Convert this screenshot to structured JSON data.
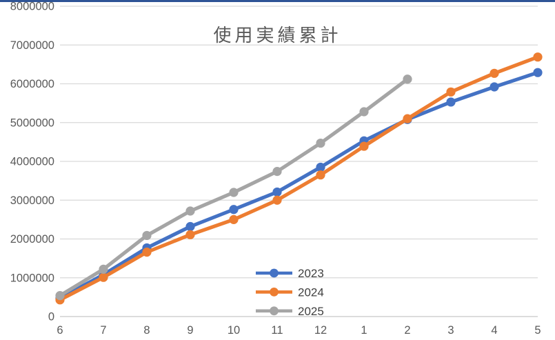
{
  "chart_data": {
    "type": "line",
    "title": "使用実績累計",
    "categories": [
      "6",
      "7",
      "8",
      "9",
      "10",
      "11",
      "12",
      "1",
      "2",
      "3",
      "4",
      "5"
    ],
    "series": [
      {
        "name": "2023",
        "color": "#4472C4",
        "values": [
          470000,
          1080000,
          1770000,
          2320000,
          2760000,
          3210000,
          3850000,
          4530000,
          5080000,
          5530000,
          5920000,
          6290000
        ]
      },
      {
        "name": "2024",
        "color": "#ED7D31",
        "values": [
          430000,
          1010000,
          1660000,
          2110000,
          2500000,
          3000000,
          3650000,
          4390000,
          5100000,
          5790000,
          6270000,
          6690000
        ]
      },
      {
        "name": "2025",
        "color": "#A5A5A5",
        "values": [
          540000,
          1220000,
          2090000,
          2720000,
          3200000,
          3740000,
          4470000,
          5280000,
          6120000
        ]
      }
    ],
    "ylim": [
      0,
      8000000
    ],
    "ytick_interval": 1000000,
    "ytick_labels": [
      "0",
      "1000000",
      "2000000",
      "3000000",
      "4000000",
      "5000000",
      "6000000",
      "7000000",
      "8000000"
    ],
    "grid": true,
    "legend_position": "inside-bottom-center",
    "legend_entries": [
      "2023",
      "2024",
      "2025"
    ]
  },
  "colors": {
    "background": "#FFFFFF",
    "top_border": "#2F5496",
    "gridline": "#D9D9D9",
    "axis_line": "#C6C6C6",
    "tick_text": "#595959",
    "title_text": "#595959",
    "legend_text": "#404040"
  }
}
